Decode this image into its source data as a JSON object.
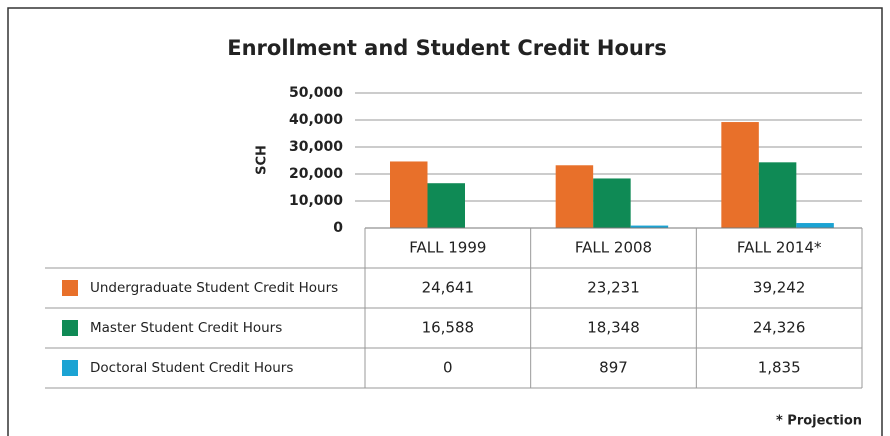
{
  "chart_data": {
    "type": "bar",
    "title": "Enrollment and Student Credit Hours",
    "y_label": "SCH",
    "categories": [
      "FALL 1999",
      "FALL 2008",
      "FALL 2014*"
    ],
    "series": [
      {
        "name": "Undergraduate Student Credit Hours",
        "color": "#e8702a",
        "values": [
          24641,
          23231,
          39242
        ],
        "value_labels": [
          "24,641",
          "23,231",
          "39,242"
        ]
      },
      {
        "name": "Master Student Credit Hours",
        "color": "#0f8a55",
        "values": [
          16588,
          18348,
          24326
        ],
        "value_labels": [
          "16,588",
          "18,348",
          "24,326"
        ]
      },
      {
        "name": "Doctoral Student Credit Hours",
        "color": "#1ba3d3",
        "values": [
          0,
          897,
          1835
        ],
        "value_labels": [
          "0",
          "897",
          "1,835"
        ]
      }
    ],
    "ylim": [
      0,
      50000
    ],
    "yticks": [
      0,
      {
        "value": 10000,
        "label": "10,000"
      },
      {
        "value": 20000,
        "label": "20,000"
      },
      {
        "value": 30000,
        "label": "30,000"
      },
      {
        "value": 40000,
        "label": "40,000"
      },
      {
        "value": 50000,
        "label": "50,000"
      }
    ],
    "grid": true,
    "footnote": "* Projection"
  }
}
